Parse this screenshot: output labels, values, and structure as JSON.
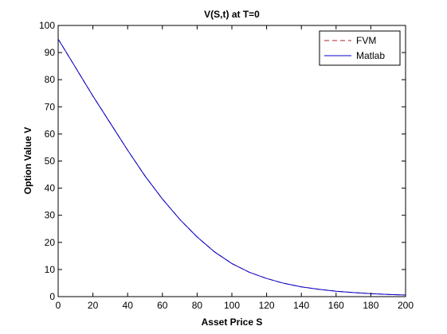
{
  "chart_data": {
    "type": "line",
    "title": "V(S,t) at T=0",
    "xlabel": "Asset Price S",
    "ylabel": "Option Value V",
    "xlim": [
      0,
      200
    ],
    "ylim": [
      0,
      100
    ],
    "xticks": [
      0,
      20,
      40,
      60,
      80,
      100,
      120,
      140,
      160,
      180,
      200
    ],
    "yticks": [
      0,
      10,
      20,
      30,
      40,
      50,
      60,
      70,
      80,
      90,
      100
    ],
    "grid": false,
    "legend_position": "top-right",
    "x": [
      0,
      10,
      20,
      30,
      40,
      50,
      60,
      70,
      80,
      90,
      100,
      110,
      120,
      130,
      140,
      150,
      160,
      170,
      180,
      190,
      200
    ],
    "series": [
      {
        "name": "FVM",
        "style": "dashed",
        "color": "#b22222",
        "values": [
          95,
          84.5,
          74,
          64,
          54,
          44.5,
          36,
          28.5,
          22,
          16.5,
          12.2,
          9,
          6.7,
          4.9,
          3.6,
          2.7,
          2.0,
          1.5,
          1.1,
          0.8,
          0.6
        ]
      },
      {
        "name": "Matlab",
        "style": "solid",
        "color": "#0000cc",
        "values": [
          95,
          84.5,
          74,
          64,
          54,
          44.5,
          36,
          28.5,
          22,
          16.5,
          12.2,
          9,
          6.7,
          4.9,
          3.6,
          2.7,
          2.0,
          1.5,
          1.1,
          0.8,
          0.6
        ]
      }
    ]
  }
}
